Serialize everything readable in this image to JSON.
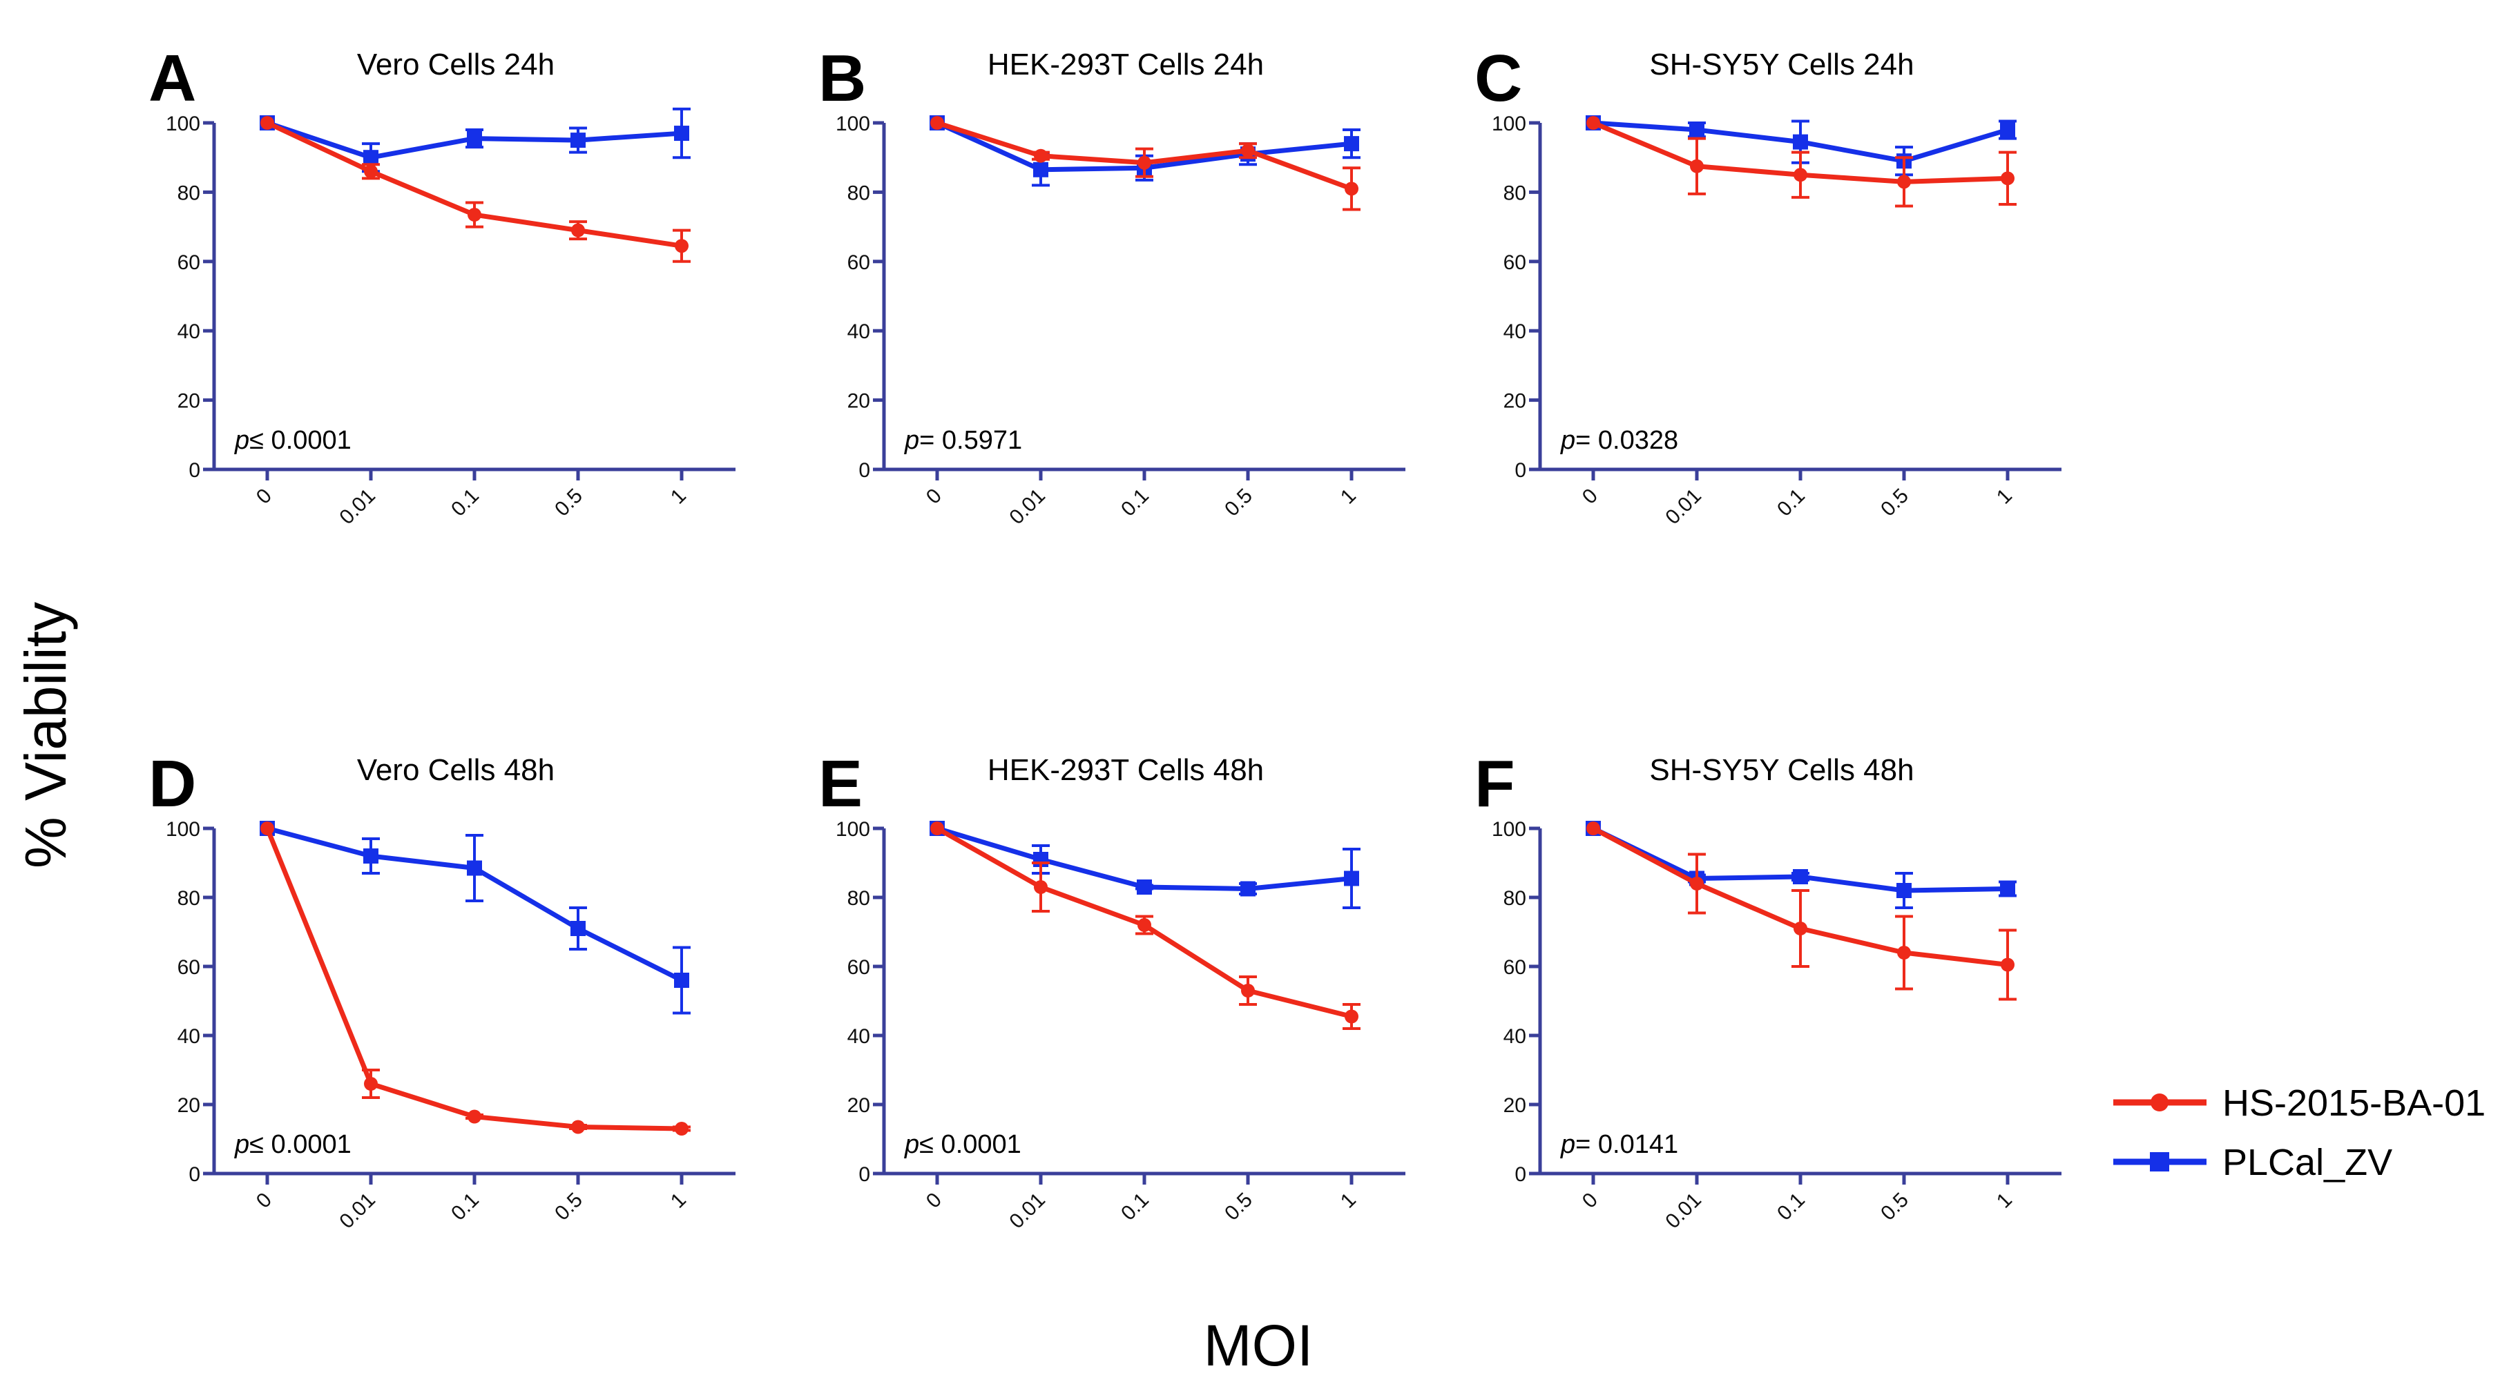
{
  "chart_data": {
    "ylabel": "% Viability",
    "xlabel": "MOI",
    "x_categories": [
      "0",
      "0.01",
      "0.1",
      "0.5",
      "1"
    ],
    "ylim": [
      0,
      100
    ],
    "yticks": [
      0,
      20,
      40,
      60,
      80,
      100
    ],
    "legend": {
      "placement": "bottom-right",
      "entries": [
        {
          "name": "HS-2015-BA-01",
          "color": "#ee2a1a",
          "marker": "circle"
        },
        {
          "name": "PLCal_ZV",
          "color": "#1530e8",
          "marker": "square"
        }
      ]
    },
    "panels": [
      {
        "type": "line",
        "letter": "A",
        "title": "Vero Cells 24h",
        "p_label": "p",
        "p_op": "≤",
        "p_value": "0.0001",
        "series": [
          {
            "name": "HS-2015-BA-01",
            "values": [
              100,
              86,
              73.5,
              69,
              64.5
            ],
            "errors": [
              0,
              2,
              3.5,
              2.5,
              4.5
            ]
          },
          {
            "name": "PLCal_ZV",
            "values": [
              100,
              90,
              95.5,
              95,
              97
            ],
            "errors": [
              0,
              4,
              2.5,
              3.5,
              7
            ]
          }
        ]
      },
      {
        "type": "line",
        "letter": "B",
        "title": "HEK-293T Cells 24h",
        "p_label": "p",
        "p_op": "=",
        "p_value": "0.5971",
        "series": [
          {
            "name": "HS-2015-BA-01",
            "values": [
              100,
              90.5,
              88.5,
              92,
              81
            ],
            "errors": [
              0,
              1,
              4,
              2,
              6
            ]
          },
          {
            "name": "PLCal_ZV",
            "values": [
              100,
              86.5,
              87,
              91,
              94
            ],
            "errors": [
              0,
              4.5,
              3.5,
              3,
              4
            ]
          }
        ]
      },
      {
        "type": "line",
        "letter": "C",
        "title": "SH-SY5Y Cells 24h",
        "p_label": "p",
        "p_op": "=",
        "p_value": "0.0328",
        "series": [
          {
            "name": "HS-2015-BA-01",
            "values": [
              100,
              87.5,
              85,
              83,
              84
            ],
            "errors": [
              0,
              8,
              6.5,
              7,
              7.5
            ]
          },
          {
            "name": "PLCal_ZV",
            "values": [
              100,
              98,
              94.5,
              89,
              98
            ],
            "errors": [
              0,
              2,
              6,
              4,
              2.5
            ]
          }
        ]
      },
      {
        "type": "line",
        "letter": "D",
        "title": "Vero Cells 48h",
        "p_label": "p",
        "p_op": "≤",
        "p_value": "0.0001",
        "series": [
          {
            "name": "HS-2015-BA-01",
            "values": [
              100,
              26,
              16.5,
              13.5,
              13
            ],
            "errors": [
              0,
              4,
              0.5,
              0.5,
              0.5
            ]
          },
          {
            "name": "PLCal_ZV",
            "values": [
              100,
              92,
              88.5,
              71,
              56
            ],
            "errors": [
              0,
              5,
              9.5,
              6,
              9.5
            ]
          }
        ]
      },
      {
        "type": "line",
        "letter": "E",
        "title": "HEK-293T Cells 48h",
        "p_label": "p",
        "p_op": "≤",
        "p_value": "0.0001",
        "series": [
          {
            "name": "HS-2015-BA-01",
            "values": [
              100,
              83,
              72,
              53,
              45.5
            ],
            "errors": [
              0,
              7,
              2.5,
              4,
              3.5
            ]
          },
          {
            "name": "PLCal_ZV",
            "values": [
              100,
              91,
              83,
              82.5,
              85.5
            ],
            "errors": [
              0,
              4,
              0.5,
              1.5,
              8.5
            ]
          }
        ]
      },
      {
        "type": "line",
        "letter": "F",
        "title": "SH-SY5Y Cells 48h",
        "p_label": "p",
        "p_op": "=",
        "p_value": "0.0141",
        "series": [
          {
            "name": "HS-2015-BA-01",
            "values": [
              100,
              84,
              71,
              64,
              60.5
            ],
            "errors": [
              0,
              8.5,
              11,
              10.5,
              10
            ]
          },
          {
            "name": "PLCal_ZV",
            "values": [
              100,
              85.5,
              86,
              82,
              82.5
            ],
            "errors": [
              0,
              1,
              1,
              5,
              2
            ]
          }
        ]
      }
    ]
  }
}
